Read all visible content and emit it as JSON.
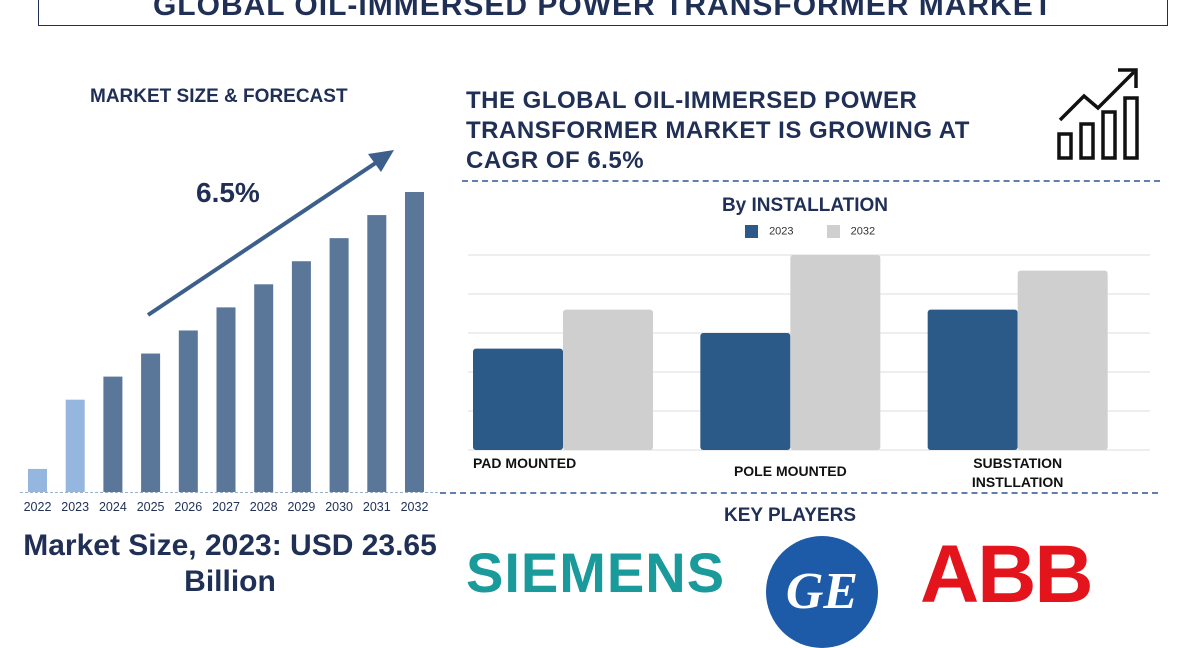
{
  "title": "GLOBAL OIL-IMMERSED POWER TRANSFORMER MARKET",
  "left_panel": {
    "heading": "MARKET SIZE & FORECAST",
    "cagr": "6.5%",
    "market_size": "Market Size, 2023: USD 23.65 Billion"
  },
  "headline": "THE GLOBAL OIL-IMMERSED POWER TRANSFORMER MARKET IS GROWING AT CAGR OF 6.5%",
  "key_players": {
    "heading": "KEY PLAYERS",
    "siemens": "SIEMENS",
    "ge": "GE",
    "abb": "ABB"
  },
  "icons": [
    "growth-chart-icon",
    "trend-arrow-icon"
  ],
  "colors": {
    "navy": "#1f2f55",
    "bar_steel": "#5a7698",
    "bar_light": "#95b7df",
    "series_2023": "#2c5a88",
    "series_2032": "#cfcfcf",
    "siemens": "#1a9a9a",
    "ge": "#1d5aa8",
    "abb": "#e3141b"
  },
  "chart_data": [
    {
      "type": "bar",
      "title": "MARKET SIZE & FORECAST",
      "categories": [
        "2022",
        "2023",
        "2024",
        "2025",
        "2026",
        "2027",
        "2028",
        "2029",
        "2030",
        "2031",
        "2032"
      ],
      "values": [
        1,
        4,
        5,
        6,
        7,
        8,
        9,
        10,
        11,
        12,
        13
      ],
      "annotation": "6.5%",
      "grid": false
    },
    {
      "type": "bar",
      "title": "By INSTALLATION",
      "categories": [
        "PAD MOUNTED",
        "POLE MOUNTED",
        "SUBSTATION INSTLLATION"
      ],
      "series": [
        {
          "name": "2023",
          "values": [
            2.6,
            3.0,
            3.6
          ]
        },
        {
          "name": "2032",
          "values": [
            3.6,
            5.0,
            4.6
          ]
        }
      ],
      "ylim": [
        0,
        5
      ],
      "grid": true,
      "legend": "top"
    }
  ]
}
